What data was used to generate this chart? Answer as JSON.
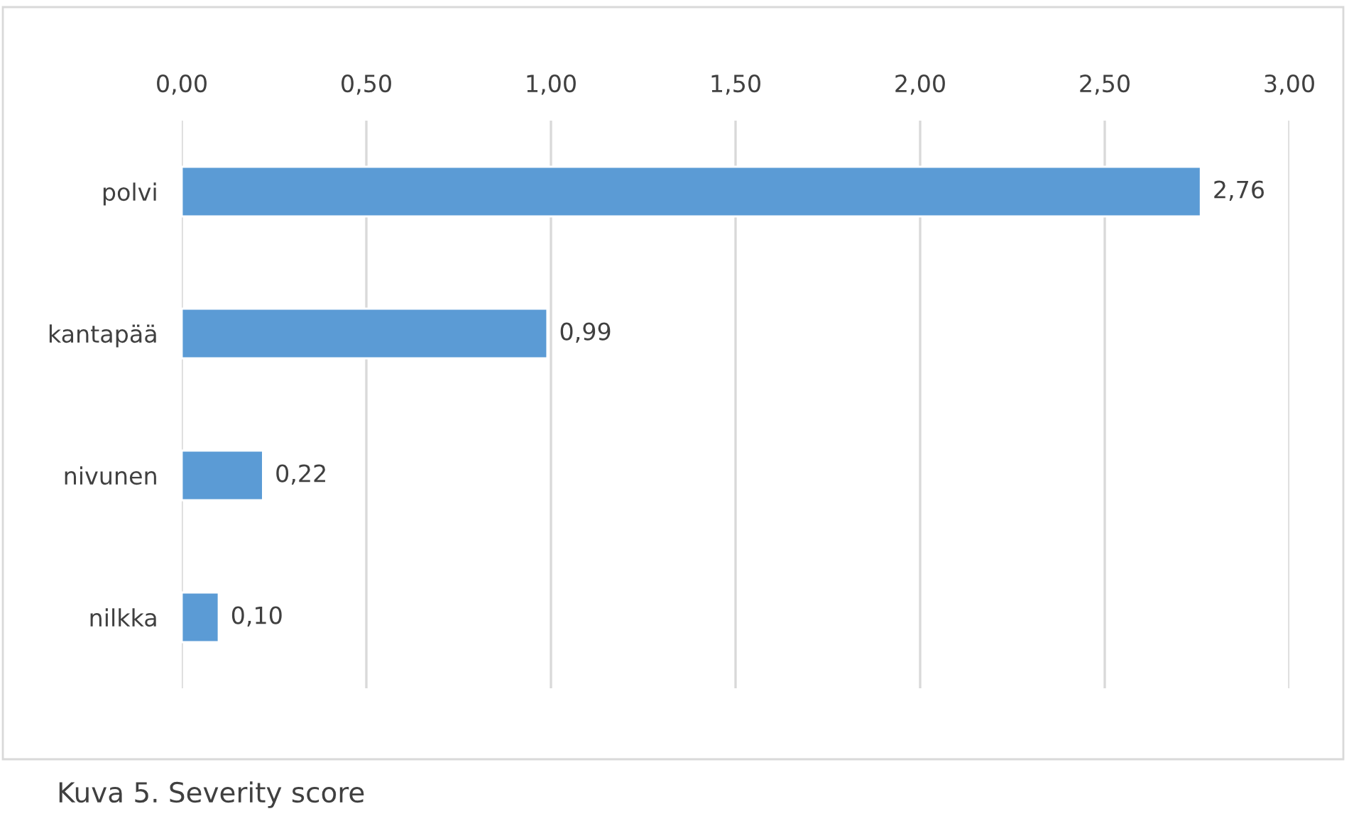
{
  "chart_data": {
    "type": "bar",
    "orientation": "horizontal",
    "categories": [
      "polvi",
      "kantapää",
      "nivunen",
      "nilkka"
    ],
    "values": [
      2.76,
      0.99,
      0.22,
      0.1
    ],
    "value_labels": [
      "2,76",
      "0,99",
      "0,22",
      "0,10"
    ],
    "color": "#5b9bd5",
    "xlim": [
      0,
      3
    ],
    "xticks": [
      {
        "value": 0,
        "label": "0,00"
      },
      {
        "value": 0.5,
        "label": "0,50"
      },
      {
        "value": 1,
        "label": "1,00"
      },
      {
        "value": 1.5,
        "label": "1,50"
      },
      {
        "value": 2,
        "label": "2,00"
      },
      {
        "value": 2.5,
        "label": "2,50"
      },
      {
        "value": 3,
        "label": "3,00"
      }
    ],
    "grid": "x",
    "annotations": [
      "Kuva 5. Severity score"
    ]
  }
}
